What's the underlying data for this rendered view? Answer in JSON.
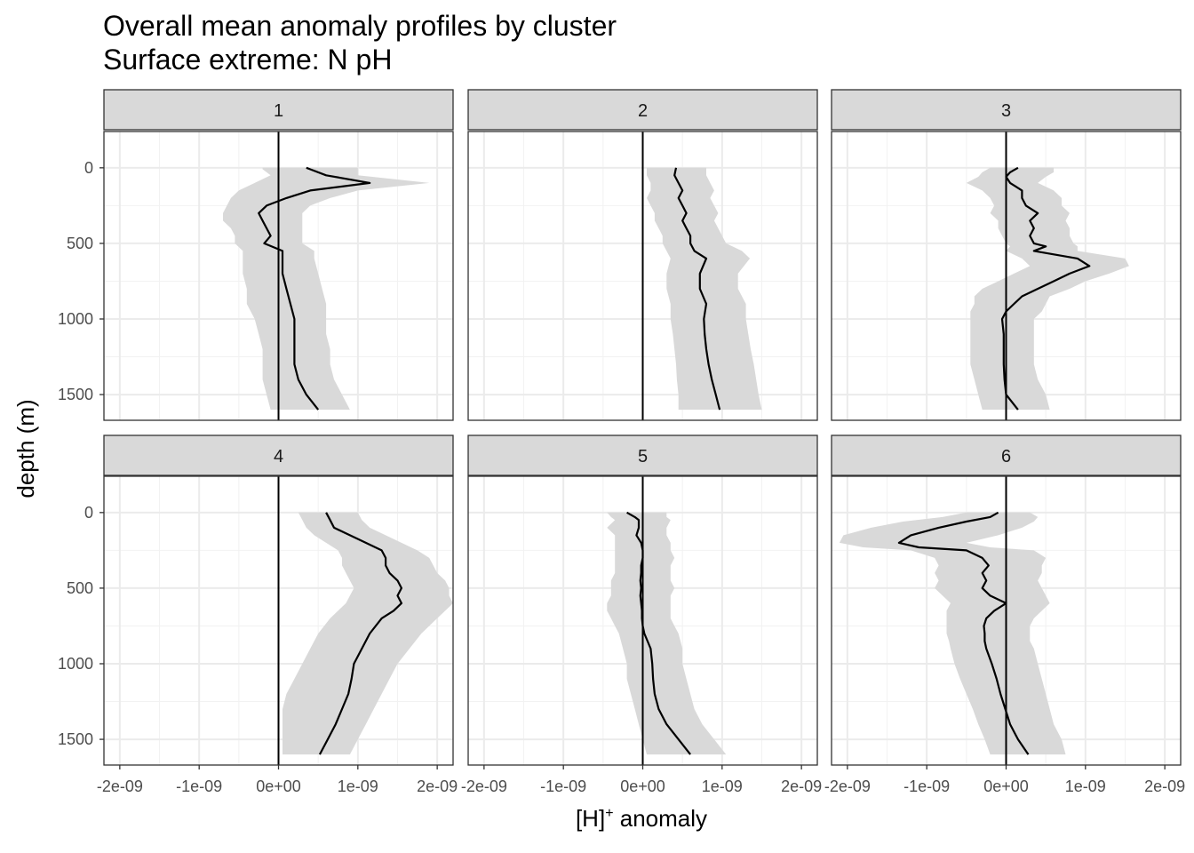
{
  "chart_data": {
    "type": "line",
    "title": "Overall mean anomaly profiles by cluster",
    "subtitle": "Surface extreme: N pH",
    "xlabel_main": "[H]",
    "xlabel_sup": "+",
    "xlabel_rest": " anomaly",
    "ylabel": "depth (m)",
    "xlim": [
      -2.2e-09,
      2.2e-09
    ],
    "ylim": [
      1670,
      -240
    ],
    "x_ticks": [
      -2e-09,
      -1e-09,
      0,
      1e-09,
      2e-09
    ],
    "x_tick_labels": [
      "-2e-09",
      "-1e-09",
      "0e+00",
      "1e-09",
      "2e-09"
    ],
    "y_ticks": [
      0,
      500,
      1000,
      1500
    ],
    "y_tick_labels": [
      "0",
      "500",
      "1000",
      "1500"
    ],
    "grid": true,
    "band": "shaded spread around mean",
    "colors": {
      "line": "#000000",
      "band": "#d9d9d9",
      "strip": "#d9d9d9",
      "grid": "#ebebeb",
      "border": "#333333"
    },
    "panels": [
      {
        "label": "1",
        "depth": [
          0,
          10,
          50,
          100,
          150,
          200,
          250,
          300,
          350,
          400,
          450,
          500,
          550,
          600,
          700,
          800,
          900,
          1000,
          1100,
          1200,
          1300,
          1400,
          1500,
          1600
        ],
        "mean": [
          3.5e-10,
          4e-10,
          6e-10,
          1.15e-09,
          4e-10,
          1e-10,
          -1.5e-10,
          -2.5e-10,
          -2e-10,
          -1.5e-10,
          -1e-10,
          -1.8e-10,
          5e-11,
          5e-11,
          5e-11,
          1e-10,
          1.5e-10,
          2e-10,
          2e-10,
          2e-10,
          2e-10,
          2.5e-10,
          3.5e-10,
          5e-10
        ],
        "lower": [
          -2e-10,
          -2e-10,
          -1e-10,
          -3e-10,
          -5e-10,
          -6e-10,
          -6.5e-10,
          -7e-10,
          -7e-10,
          -6e-10,
          -5.5e-10,
          -5.5e-10,
          -4.5e-10,
          -4.5e-10,
          -4.5e-10,
          -4e-10,
          -4e-10,
          -3e-10,
          -2.5e-10,
          -2e-10,
          -2e-10,
          -2e-10,
          -1.5e-10,
          -1e-10
        ],
        "upper": [
          1e-09,
          1e-09,
          1e-09,
          1.9e-09,
          1e-09,
          6.5e-10,
          4e-10,
          3e-10,
          3e-10,
          3e-10,
          3e-10,
          3e-10,
          4.5e-10,
          4.5e-10,
          5e-10,
          5.5e-10,
          6e-10,
          6e-10,
          6e-10,
          6.5e-10,
          6.5e-10,
          7e-10,
          8e-10,
          9e-10
        ]
      },
      {
        "label": "2",
        "depth": [
          0,
          50,
          100,
          150,
          200,
          250,
          300,
          350,
          400,
          450,
          500,
          550,
          600,
          700,
          800,
          900,
          1000,
          1100,
          1200,
          1300,
          1400,
          1500,
          1600
        ],
        "mean": [
          4.2e-10,
          4e-10,
          4.5e-10,
          5e-10,
          4.5e-10,
          5e-10,
          5.5e-10,
          5e-10,
          5.5e-10,
          6e-10,
          6e-10,
          6.5e-10,
          8e-10,
          7.2e-10,
          7.2e-10,
          8e-10,
          7.7e-10,
          7.8e-10,
          8e-10,
          8.3e-10,
          8.7e-10,
          9.2e-10,
          9.7e-10
        ],
        "lower": [
          5e-11,
          5e-11,
          1e-10,
          1e-10,
          5e-11,
          1e-10,
          1.5e-10,
          1.5e-10,
          2e-10,
          2.5e-10,
          2.5e-10,
          3e-10,
          3.5e-10,
          3e-10,
          3e-10,
          3.5e-10,
          3.5e-10,
          3.8e-10,
          4e-10,
          4.2e-10,
          4.3e-10,
          4.5e-10,
          4.5e-10
        ],
        "upper": [
          8e-10,
          8e-10,
          8.5e-10,
          9e-10,
          8.5e-10,
          9e-10,
          9.5e-10,
          9e-10,
          9.5e-10,
          1e-09,
          1.05e-09,
          1.25e-09,
          1.35e-09,
          1.2e-09,
          1.2e-09,
          1.3e-09,
          1.3e-09,
          1.33e-09,
          1.36e-09,
          1.4e-09,
          1.43e-09,
          1.46e-09,
          1.5e-09
        ]
      },
      {
        "label": "3",
        "depth": [
          0,
          30,
          60,
          100,
          150,
          200,
          250,
          300,
          350,
          400,
          450,
          500,
          520,
          550,
          600,
          650,
          700,
          750,
          800,
          850,
          900,
          950,
          1000,
          1100,
          1200,
          1300,
          1400,
          1500,
          1600
        ],
        "mean": [
          1.5e-10,
          5e-11,
          0.0,
          5e-11,
          2e-10,
          2e-10,
          2.5e-10,
          4e-10,
          3e-10,
          3.5e-10,
          3e-10,
          3.5e-10,
          5e-10,
          3.5e-10,
          9e-10,
          1.05e-09,
          8e-10,
          6e-10,
          4e-10,
          2e-10,
          1e-10,
          0.0,
          -5e-11,
          -3e-11,
          -3e-11,
          -3e-11,
          -2e-11,
          0.0,
          1.5e-10
        ],
        "lower": [
          -2e-10,
          -3e-10,
          -3.5e-10,
          -5e-10,
          -3e-10,
          -2e-10,
          -1.5e-10,
          -2e-10,
          -1e-10,
          -1e-10,
          -5e-11,
          0.0,
          5e-11,
          0.0,
          2e-10,
          3e-10,
          1e-10,
          -1e-10,
          -3e-10,
          -4e-10,
          -4e-10,
          -4.5e-10,
          -4.5e-10,
          -4.5e-10,
          -4.5e-10,
          -4.5e-10,
          -4e-10,
          -3.5e-10,
          -3e-10
        ],
        "upper": [
          6e-10,
          6e-10,
          5e-10,
          4e-10,
          6e-10,
          7e-10,
          7e-10,
          8e-10,
          7.5e-10,
          8e-10,
          8e-10,
          8.5e-10,
          9e-10,
          9e-10,
          1.5e-09,
          1.55e-09,
          1.3e-09,
          1e-09,
          8e-10,
          5.5e-10,
          5e-10,
          4.5e-10,
          3.5e-10,
          3.5e-10,
          3.5e-10,
          3.5e-10,
          4e-10,
          5e-10,
          5.5e-10
        ]
      },
      {
        "label": "4",
        "depth": [
          0,
          50,
          100,
          150,
          200,
          250,
          300,
          350,
          400,
          450,
          500,
          550,
          600,
          650,
          700,
          800,
          900,
          1000,
          1100,
          1200,
          1300,
          1400,
          1500,
          1600
        ],
        "mean": [
          6e-10,
          6.5e-10,
          7e-10,
          9e-10,
          1.1e-09,
          1.3e-09,
          1.35e-09,
          1.35e-09,
          1.4e-09,
          1.5e-09,
          1.55e-09,
          1.5e-09,
          1.55e-09,
          1.45e-09,
          1.3e-09,
          1.15e-09,
          1.05e-09,
          9.5e-10,
          9.2e-10,
          8.8e-10,
          8e-10,
          7.2e-10,
          6.2e-10,
          5.2e-10
        ],
        "lower": [
          2.5e-10,
          3e-10,
          3.5e-10,
          4.5e-10,
          6e-10,
          7.5e-10,
          8e-10,
          8e-10,
          8.5e-10,
          9e-10,
          9.5e-10,
          9e-10,
          8.5e-10,
          7.5e-10,
          6.5e-10,
          5e-10,
          4e-10,
          3e-10,
          2e-10,
          1e-10,
          5e-11,
          5e-11,
          5e-11,
          5e-11
        ],
        "upper": [
          1e-09,
          1.05e-09,
          1.15e-09,
          1.35e-09,
          1.55e-09,
          1.75e-09,
          1.9e-09,
          1.95e-09,
          2e-09,
          2.1e-09,
          2.15e-09,
          2.15e-09,
          2.2e-09,
          2.1e-09,
          2e-09,
          1.8e-09,
          1.65e-09,
          1.5e-09,
          1.4e-09,
          1.3e-09,
          1.2e-09,
          1.1e-09,
          1e-09,
          9e-10
        ]
      },
      {
        "label": "5",
        "depth": [
          0,
          30,
          50,
          100,
          150,
          200,
          250,
          300,
          350,
          400,
          450,
          500,
          550,
          600,
          650,
          700,
          750,
          800,
          900,
          1000,
          1100,
          1200,
          1300,
          1400,
          1500,
          1600
        ],
        "mean": [
          -2e-10,
          -1e-10,
          -5e-11,
          -5e-11,
          -8e-11,
          -2e-11,
          0.0,
          0.0,
          -2e-11,
          -2e-11,
          -3e-11,
          -2e-11,
          -3e-11,
          -2e-11,
          -1e-11,
          -1e-11,
          0.0,
          2e-11,
          1e-10,
          1.2e-10,
          1.3e-10,
          1.5e-10,
          2e-10,
          3e-10,
          4.5e-10,
          6e-10
        ],
        "lower": [
          -4.5e-10,
          -4e-10,
          -3.5e-10,
          -4.5e-10,
          -3.5e-10,
          -3.5e-10,
          -3.5e-10,
          -3.5e-10,
          -3.5e-10,
          -3.5e-10,
          -4e-10,
          -4e-10,
          -4e-10,
          -4.5e-10,
          -4.5e-10,
          -4e-10,
          -3.5e-10,
          -3e-10,
          -2.5e-10,
          -2e-10,
          -2e-10,
          -1.5e-10,
          -1e-10,
          -5e-11,
          0.0,
          5e-11
        ],
        "upper": [
          3e-10,
          3e-10,
          3.5e-10,
          3e-10,
          3e-10,
          3.5e-10,
          3.5e-10,
          4e-10,
          3.5e-10,
          3.5e-10,
          3.5e-10,
          4e-10,
          3.5e-10,
          3.5e-10,
          3.5e-10,
          3.5e-10,
          4e-10,
          4.5e-10,
          5e-10,
          5e-10,
          5.5e-10,
          6e-10,
          6.5e-10,
          7.5e-10,
          9e-10,
          1.05e-09
        ]
      },
      {
        "label": "6",
        "depth": [
          0,
          30,
          60,
          100,
          150,
          200,
          230,
          250,
          300,
          350,
          400,
          450,
          500,
          550,
          600,
          650,
          700,
          750,
          800,
          850,
          900,
          1000,
          1100,
          1200,
          1300,
          1400,
          1500,
          1600
        ],
        "mean": [
          -1e-10,
          -2e-10,
          -5e-10,
          -8.5e-10,
          -1.2e-09,
          -1.35e-09,
          -1.1e-09,
          -5e-10,
          -3e-10,
          -2.2e-10,
          -3e-10,
          -2.5e-10,
          -3e-10,
          -2e-10,
          0.0,
          -1.5e-10,
          -2.5e-10,
          -2.8e-10,
          -2.7e-10,
          -2.7e-10,
          -2.5e-10,
          -1.8e-10,
          -1.2e-10,
          -7e-11,
          -1e-11,
          5e-11,
          1.5e-10,
          2.8e-10
        ],
        "lower": [
          -5e-10,
          -8e-10,
          -1.3e-09,
          -1.7e-09,
          -2.05e-09,
          -2.1e-09,
          -1.8e-09,
          -1.2e-09,
          -9e-10,
          -8.5e-10,
          -9e-10,
          -8.5e-10,
          -9e-10,
          -8e-10,
          -7e-10,
          -7.5e-10,
          -7.5e-10,
          -7.5e-10,
          -7.5e-10,
          -7.2e-10,
          -7e-10,
          -6.5e-10,
          -5.8e-10,
          -5e-10,
          -4.2e-10,
          -3.5e-10,
          -2.7e-10,
          -2e-10
        ],
        "upper": [
          3e-10,
          4e-10,
          3.5e-10,
          2e-10,
          -1e-10,
          -5e-10,
          -2e-10,
          3.5e-10,
          5e-10,
          4.5e-10,
          4.5e-10,
          4e-10,
          4.5e-10,
          5e-10,
          5.5e-10,
          4.5e-10,
          3.5e-10,
          3e-10,
          3e-10,
          3e-10,
          3.5e-10,
          4e-10,
          4.5e-10,
          5e-10,
          5.5e-10,
          6e-10,
          7e-10,
          7.5e-10
        ]
      }
    ]
  }
}
